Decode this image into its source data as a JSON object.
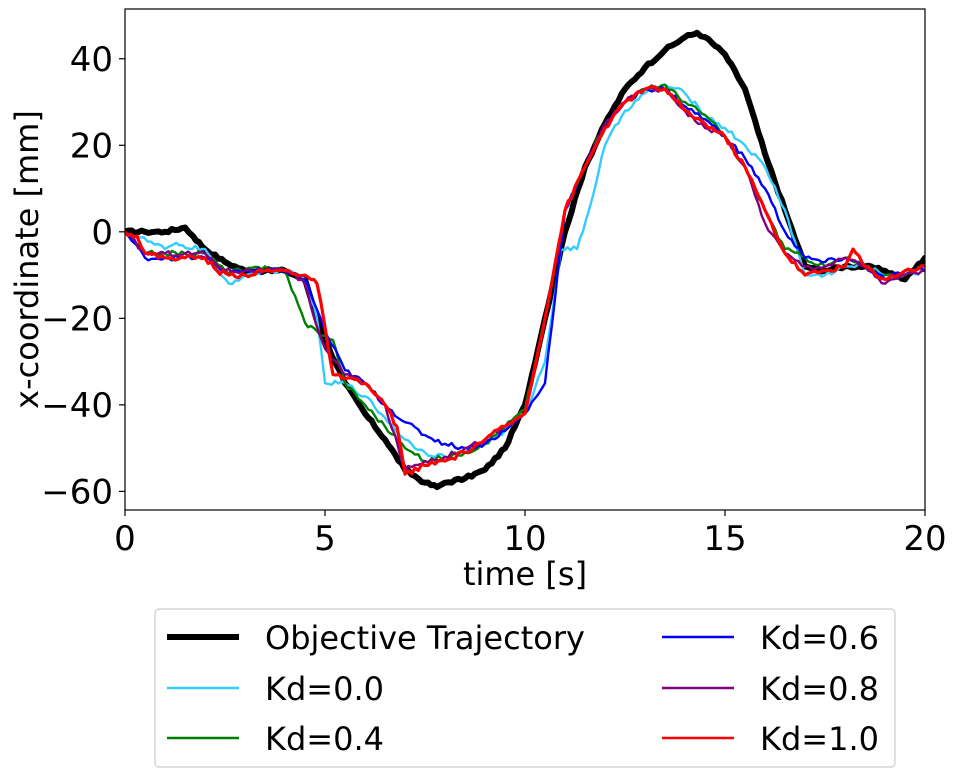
{
  "chart_data": {
    "type": "line",
    "title": "",
    "xlabel": "time [s]",
    "ylabel": "x-coordinate [mm]",
    "xlim": [
      0,
      20
    ],
    "ylim": [
      -65,
      52
    ],
    "xticks": [
      0,
      5,
      10,
      15,
      20
    ],
    "xtick_labels": [
      "0",
      "5",
      "10",
      "15",
      "20"
    ],
    "yticks": [
      40,
      20,
      0,
      -20,
      -40,
      -60
    ],
    "ytick_labels": [
      "40",
      "20",
      "0",
      "−20",
      "−40",
      "−60"
    ],
    "grid": false,
    "legend_position": "below",
    "series": [
      {
        "name": "Objective Trajectory",
        "color": "#000000",
        "x": [
          0,
          0.5,
          1.0,
          1.5,
          1.7,
          2.0,
          2.5,
          3.0,
          3.5,
          4.0,
          4.5,
          4.8,
          5.0,
          5.5,
          6.0,
          6.5,
          7.0,
          7.5,
          7.8,
          8.0,
          8.5,
          9.0,
          9.5,
          10.0,
          10.5,
          11.0,
          11.5,
          12.0,
          12.5,
          13.0,
          13.5,
          14.0,
          14.3,
          14.5,
          15.0,
          15.5,
          16.0,
          16.5,
          17.0,
          17.5,
          18.0,
          18.5,
          19.0,
          19.5,
          20.0
        ],
        "values": [
          0,
          0,
          0,
          1,
          -1,
          -4,
          -7,
          -9,
          -9,
          -9,
          -11,
          -20,
          -25,
          -35,
          -42,
          -48,
          -55,
          -58,
          -59,
          -58,
          -57,
          -55,
          -50,
          -40,
          -20,
          0,
          15,
          25,
          33,
          38,
          42,
          45,
          46,
          45,
          41,
          33,
          18,
          5,
          -8,
          -9,
          -8,
          -8,
          -9,
          -11,
          -6
        ]
      },
      {
        "name": "Kd=0.0",
        "color": "#33ccff",
        "x": [
          0,
          0.3,
          1.0,
          1.2,
          2.0,
          2.4,
          2.6,
          3.0,
          3.5,
          4.0,
          4.5,
          4.8,
          5.0,
          5.5,
          6.0,
          6.5,
          7.0,
          7.5,
          8.0,
          8.5,
          9.0,
          9.5,
          10.0,
          10.5,
          10.9,
          11.3,
          11.6,
          12.0,
          12.5,
          13.0,
          13.5,
          14.0,
          14.5,
          15.0,
          15.5,
          16.0,
          16.5,
          17.0,
          17.5,
          18.0,
          18.5,
          19.0,
          19.5,
          20.0
        ],
        "values": [
          0,
          -1,
          -4,
          -3,
          -4,
          -10,
          -12,
          -10,
          -9,
          -9,
          -11,
          -20,
          -35,
          -35,
          -38,
          -43,
          -48,
          -51,
          -52,
          -51,
          -49,
          -46,
          -42,
          -30,
          -4,
          -4,
          5,
          20,
          28,
          32,
          34,
          32,
          27,
          24,
          20,
          15,
          5,
          -10,
          -10,
          -8,
          -8,
          -10,
          -10,
          -9
        ]
      },
      {
        "name": "Kd=0.4",
        "color": "#008000",
        "x": [
          0,
          0.5,
          1.0,
          1.5,
          2.0,
          2.5,
          3.0,
          3.5,
          4.0,
          4.5,
          4.8,
          5.0,
          5.2,
          5.5,
          6.0,
          6.5,
          7.0,
          7.5,
          8.0,
          8.5,
          9.0,
          9.5,
          10.0,
          10.5,
          11.0,
          11.5,
          12.0,
          12.5,
          13.0,
          13.5,
          14.0,
          14.5,
          15.0,
          15.5,
          16.0,
          16.5,
          17.0,
          17.5,
          18.0,
          18.5,
          19.0,
          19.5,
          20.0
        ],
        "values": [
          0,
          -5,
          -5,
          -5,
          -5,
          -9,
          -9,
          -8,
          -9,
          -21,
          -23,
          -24,
          -25,
          -35,
          -40,
          -45,
          -50,
          -53,
          -52,
          -51,
          -49,
          -45,
          -41,
          -20,
          5,
          15,
          25,
          30,
          33,
          34,
          30,
          27,
          22,
          15,
          5,
          -4,
          -6,
          -8,
          -6,
          -8,
          -10,
          -10,
          -8
        ]
      },
      {
        "name": "Kd=0.6",
        "color": "#0000ff",
        "x": [
          0,
          0.5,
          1.0,
          1.5,
          2.0,
          2.5,
          3.0,
          3.5,
          4.0,
          4.5,
          4.8,
          5.0,
          5.5,
          6.0,
          6.5,
          7.0,
          7.5,
          8.0,
          8.5,
          9.0,
          9.5,
          10.0,
          10.5,
          11.0,
          11.5,
          12.0,
          12.5,
          13.0,
          13.5,
          14.0,
          14.5,
          15.0,
          15.5,
          16.0,
          16.5,
          17.0,
          17.5,
          18.0,
          18.5,
          19.0,
          19.5,
          20.0
        ],
        "values": [
          0,
          -6,
          -6,
          -6,
          -6,
          -9,
          -9,
          -9,
          -9,
          -11,
          -18,
          -23,
          -32,
          -35,
          -40,
          -44,
          -47,
          -49,
          -50,
          -49,
          -46,
          -42,
          -35,
          5,
          15,
          25,
          30,
          33,
          33,
          29,
          26,
          22,
          17,
          10,
          0,
          -6,
          -7,
          -6,
          -8,
          -11,
          -9,
          -9
        ]
      },
      {
        "name": "Kd=0.8",
        "color": "#800080",
        "x": [
          0,
          0.5,
          1.0,
          1.5,
          2.0,
          2.5,
          3.0,
          3.5,
          4.0,
          4.5,
          4.8,
          5.0,
          5.5,
          6.0,
          6.5,
          7.0,
          7.5,
          8.0,
          8.5,
          9.0,
          9.5,
          10.0,
          10.5,
          11.0,
          11.5,
          12.0,
          12.5,
          13.0,
          13.5,
          14.0,
          14.5,
          15.0,
          15.5,
          16.0,
          16.5,
          17.0,
          17.5,
          18.0,
          18.5,
          19.0,
          19.5,
          20.0
        ],
        "values": [
          0,
          -5,
          -5,
          -5,
          -5,
          -9,
          -9,
          -9,
          -9,
          -12,
          -22,
          -27,
          -33,
          -35,
          -40,
          -55,
          -53,
          -52,
          -50,
          -48,
          -45,
          -42,
          -20,
          5,
          15,
          25,
          30,
          33,
          33,
          28,
          24,
          22,
          15,
          2,
          -5,
          -8,
          -8,
          -6,
          -8,
          -12,
          -10,
          -9
        ]
      },
      {
        "name": "Kd=1.0",
        "color": "#ff0000",
        "x": [
          0,
          0.3,
          0.5,
          1.0,
          1.5,
          2.0,
          2.3,
          2.6,
          3.0,
          3.5,
          4.0,
          4.5,
          4.8,
          5.0,
          5.2,
          5.5,
          6.0,
          6.5,
          6.8,
          7.0,
          7.5,
          8.0,
          8.5,
          9.0,
          9.5,
          10.0,
          10.5,
          11.0,
          11.5,
          12.0,
          12.5,
          13.0,
          13.5,
          14.0,
          14.5,
          15.0,
          15.5,
          16.0,
          16.5,
          17.0,
          17.5,
          18.0,
          18.2,
          18.5,
          19.0,
          19.5,
          20.0
        ],
        "values": [
          0,
          -1,
          -5,
          -6,
          -6,
          -6,
          -9,
          -10,
          -10,
          -9,
          -9,
          -10,
          -12,
          -22,
          -33,
          -34,
          -35,
          -40,
          -45,
          -56,
          -54,
          -53,
          -51,
          -48,
          -45,
          -42,
          -20,
          5,
          15,
          24,
          30,
          33,
          33,
          28,
          25,
          22,
          15,
          5,
          -5,
          -10,
          -9,
          -8,
          -4,
          -8,
          -11,
          -9,
          -8
        ]
      }
    ]
  }
}
